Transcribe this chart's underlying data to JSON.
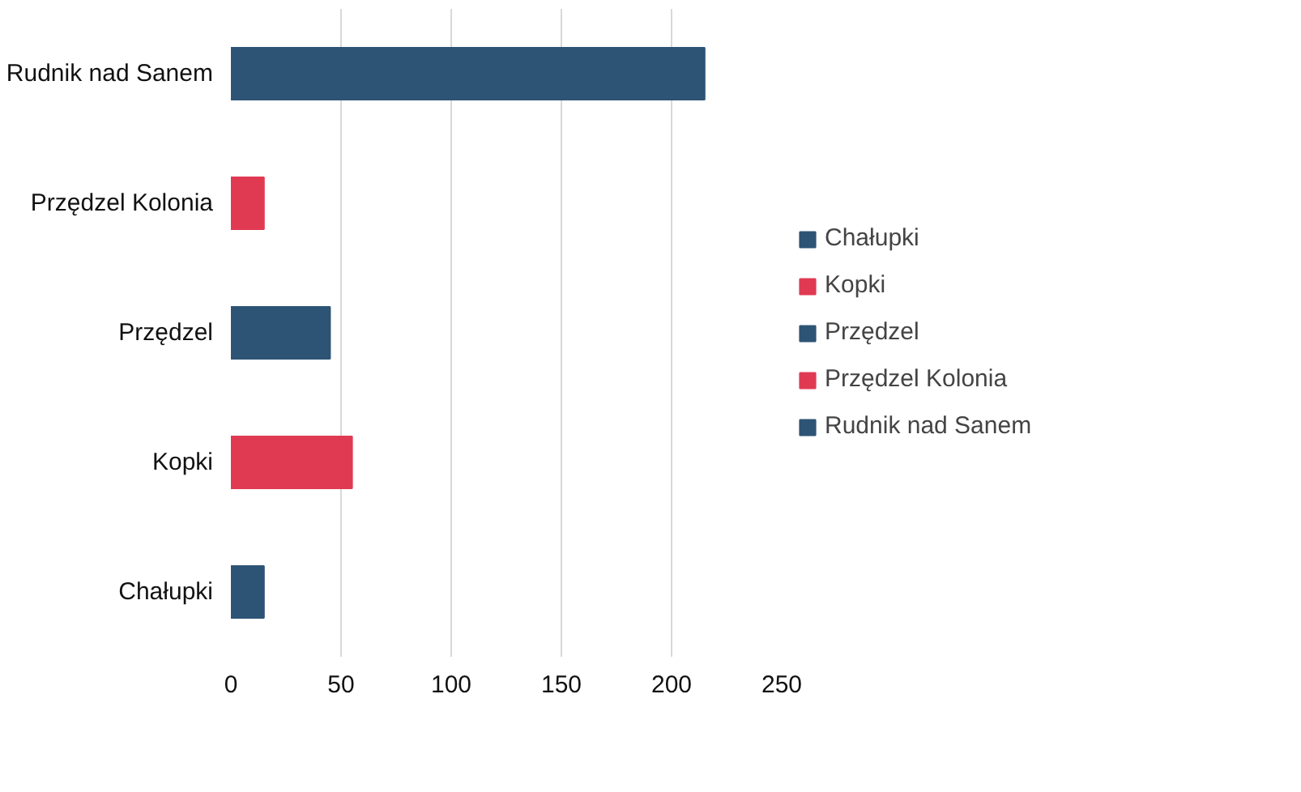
{
  "chart_data": {
    "type": "bar",
    "orientation": "horizontal",
    "stacked": true,
    "categories": [
      "Rudnik nad Sanem",
      "Przędzel Kolonia",
      "Przędzel",
      "Kopki",
      "Chałupki"
    ],
    "series": [
      {
        "name": "Chałupki",
        "color": "#2d5475",
        "values": [
          null,
          null,
          null,
          null,
          15
        ]
      },
      {
        "name": "Kopki",
        "color": "#e03a52",
        "values": [
          null,
          null,
          null,
          55,
          null
        ]
      },
      {
        "name": "Przędzel",
        "color": "#2d5475",
        "values": [
          null,
          null,
          45,
          null,
          null
        ]
      },
      {
        "name": "Przędzel Kolonia",
        "color": "#e03a52",
        "values": [
          null,
          15,
          null,
          null,
          null
        ]
      },
      {
        "name": "Rudnik nad Sanem",
        "color": "#2d5475",
        "values": [
          215,
          null,
          null,
          null,
          null
        ]
      }
    ],
    "xlim": [
      0,
      250
    ],
    "xticks": [
      0,
      50,
      100,
      150,
      200,
      250
    ],
    "grid": "x",
    "legend": "right"
  }
}
